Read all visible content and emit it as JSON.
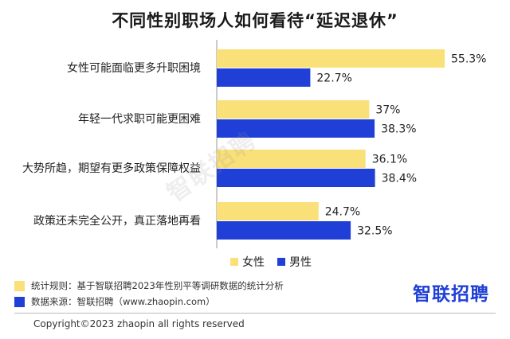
{
  "chart_data": {
    "type": "bar",
    "title": "不同性别职场人如何看待“延迟退休”",
    "categories": [
      "女性可能面临更多升职困境",
      "年轻一代求职可能更困难",
      "大势所趋，期望有更多政策保障权益",
      "政策还未完全公开，真正落地再看"
    ],
    "series": [
      {
        "name": "女性",
        "color": "#f9e079",
        "values": [
          55.3,
          37,
          36.1,
          24.7
        ],
        "labels": [
          "55.3%",
          "37%",
          "36.1%",
          "24.7%"
        ]
      },
      {
        "name": "男性",
        "color": "#1f3fd6",
        "values": [
          22.7,
          38.3,
          38.4,
          32.5
        ],
        "labels": [
          "22.7%",
          "38.3%",
          "38.4%",
          "32.5%"
        ]
      }
    ],
    "xlim": [
      0,
      55.3
    ],
    "orientation": "horizontal",
    "grid": false,
    "legend": "bottom-center"
  },
  "watermark": "智联招聘",
  "notes": [
    {
      "text": "统计规则：基于智联招聘2023年性别平等调研数据的统计分析",
      "color": "#f9e079"
    },
    {
      "text": "数据来源：智联招聘（www.zhaopin.com）",
      "color": "#1f3fd6"
    }
  ],
  "logo": "智联招聘",
  "copyright": "Copyright©2023 zhaopin all rights reserved"
}
